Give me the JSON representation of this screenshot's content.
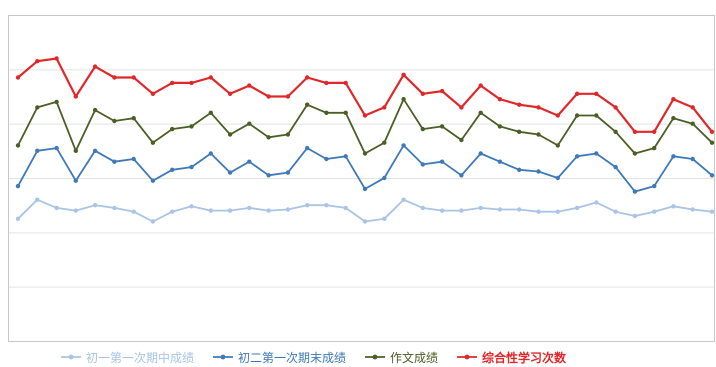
{
  "chart_data": {
    "type": "line",
    "title": "",
    "xlabel": "",
    "ylabel": "",
    "ylim": [
      0,
      6
    ],
    "grid": true,
    "legend_position": "bottom",
    "series": [
      {
        "name": "初一第一次期中成绩",
        "color": "#a9c4e4",
        "bold": false,
        "values": [
          2.25,
          2.6,
          2.45,
          2.4,
          2.5,
          2.45,
          2.38,
          2.2,
          2.38,
          2.48,
          2.4,
          2.4,
          2.45,
          2.4,
          2.42,
          2.5,
          2.5,
          2.45,
          2.2,
          2.25,
          2.6,
          2.45,
          2.4,
          2.4,
          2.45,
          2.42,
          2.42,
          2.38,
          2.38,
          2.45,
          2.55,
          2.38,
          2.3,
          2.38,
          2.48,
          2.42,
          2.38
        ]
      },
      {
        "name": "初二第一次期末成绩",
        "color": "#3f79b7",
        "bold": false,
        "values": [
          2.85,
          3.5,
          3.55,
          2.95,
          3.5,
          3.3,
          3.35,
          2.95,
          3.15,
          3.2,
          3.45,
          3.1,
          3.3,
          3.05,
          3.1,
          3.55,
          3.35,
          3.4,
          2.8,
          3.0,
          3.6,
          3.25,
          3.3,
          3.05,
          3.45,
          3.3,
          3.15,
          3.12,
          3.0,
          3.4,
          3.45,
          3.2,
          2.75,
          2.85,
          3.4,
          3.35,
          3.05
        ]
      },
      {
        "name": "作文成绩",
        "color": "#4b5e25",
        "bold": false,
        "values": [
          3.6,
          4.3,
          4.4,
          3.5,
          4.25,
          4.05,
          4.1,
          3.65,
          3.9,
          3.95,
          4.2,
          3.8,
          4.0,
          3.75,
          3.8,
          4.35,
          4.2,
          4.2,
          3.45,
          3.65,
          4.45,
          3.9,
          3.95,
          3.7,
          4.2,
          3.95,
          3.85,
          3.8,
          3.6,
          4.15,
          4.15,
          3.85,
          3.45,
          3.55,
          4.1,
          4.0,
          3.65
        ]
      },
      {
        "name": "综合性学习次数",
        "color": "#e0282a",
        "bold": true,
        "values": [
          4.85,
          5.15,
          5.2,
          4.5,
          5.05,
          4.85,
          4.85,
          4.55,
          4.75,
          4.75,
          4.85,
          4.55,
          4.7,
          4.5,
          4.5,
          4.85,
          4.75,
          4.75,
          4.15,
          4.3,
          4.9,
          4.55,
          4.6,
          4.3,
          4.7,
          4.45,
          4.35,
          4.3,
          4.15,
          4.55,
          4.55,
          4.3,
          3.85,
          3.85,
          4.45,
          4.3,
          3.85
        ]
      }
    ]
  }
}
